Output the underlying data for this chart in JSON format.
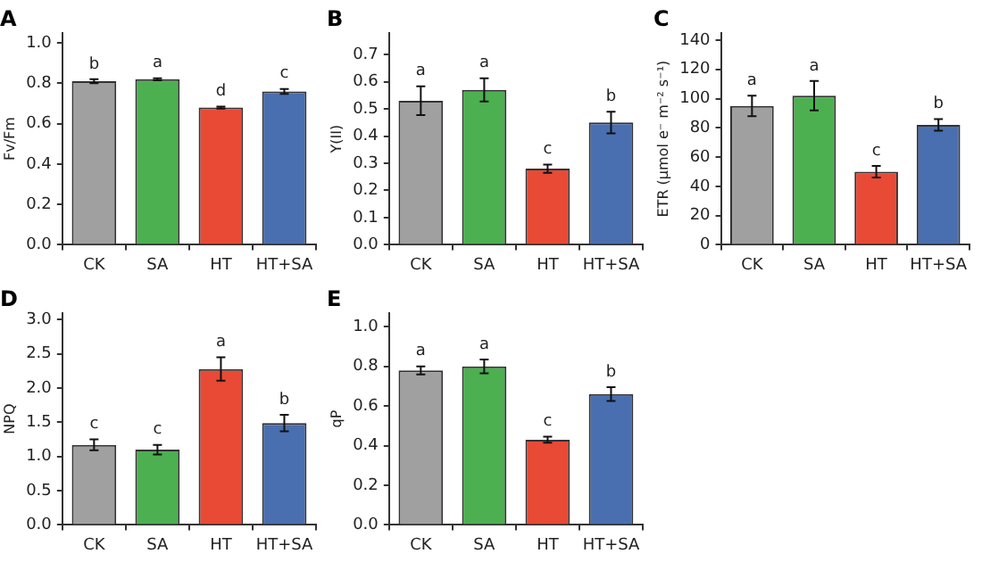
{
  "chart_data": [
    {
      "type": "bar",
      "title": "A",
      "ylabel": "Fv/Fm",
      "categories": [
        "CK",
        "SA",
        "HT",
        "HT+SA"
      ],
      "values": [
        0.81,
        0.82,
        0.68,
        0.76
      ],
      "errors": [
        0.01,
        0.005,
        0.005,
        0.012
      ],
      "colors": [
        "#a0a0a0",
        "#4cb050",
        "#e84a35",
        "#4a6fb0"
      ],
      "ylim": [
        0,
        1.05
      ],
      "yticks": [
        {
          "value": 0,
          "label": "0.0"
        },
        {
          "value": 0.2,
          "label": "0.2"
        },
        {
          "value": 0.4,
          "label": "0.4"
        },
        {
          "value": 0.6,
          "label": "0.6"
        },
        {
          "value": 0.8,
          "label": "0.8"
        },
        {
          "value": 1,
          "label": "1.0"
        }
      ],
      "annotations": [
        {
          "text": "b",
          "x": "CK",
          "y": 0.82
        },
        {
          "text": "a",
          "x": "SA",
          "y": 0.825
        },
        {
          "text": "d",
          "x": "HT",
          "y": 0.685
        },
        {
          "text": "c",
          "x": "HT+SA",
          "y": 0.772
        }
      ]
    },
    {
      "type": "bar",
      "title": "B",
      "ylabel": "Y(II)",
      "categories": [
        "CK",
        "SA",
        "HT",
        "HT+SA"
      ],
      "values": [
        0.53,
        0.57,
        0.28,
        0.45
      ],
      "errors": [
        0.053,
        0.043,
        0.015,
        0.04
      ],
      "colors": [
        "#a0a0a0",
        "#4cb050",
        "#e84a35",
        "#4a6fb0"
      ],
      "ylim": [
        0,
        0.78
      ],
      "yticks": [
        {
          "value": 0,
          "label": "0.0"
        },
        {
          "value": 0.1,
          "label": "0.1"
        },
        {
          "value": 0.2,
          "label": "0.2"
        },
        {
          "value": 0.3,
          "label": "0.3"
        },
        {
          "value": 0.4,
          "label": "0.4"
        },
        {
          "value": 0.5,
          "label": "0.5"
        },
        {
          "value": 0.6,
          "label": "0.6"
        },
        {
          "value": 0.7,
          "label": "0.7"
        }
      ],
      "annotations": [
        {
          "text": "a",
          "x": "CK",
          "y": 0.583
        },
        {
          "text": "a",
          "x": "SA",
          "y": 0.613
        },
        {
          "text": "c",
          "x": "HT",
          "y": 0.295
        },
        {
          "text": "b",
          "x": "HT+SA",
          "y": 0.49
        }
      ]
    },
    {
      "type": "bar",
      "title": "C",
      "ylabel": "ETR (μmol e⁻ m⁻² s⁻¹)",
      "categories": [
        "CK",
        "SA",
        "HT",
        "HT+SA"
      ],
      "values": [
        95,
        102,
        50,
        82
      ],
      "errors": [
        7,
        10,
        4,
        4
      ],
      "colors": [
        "#a0a0a0",
        "#4cb050",
        "#e84a35",
        "#4a6fb0"
      ],
      "ylim": [
        0,
        145
      ],
      "yticks": [
        0,
        20,
        40,
        60,
        80,
        100,
        120,
        140
      ],
      "annotations": [
        {
          "text": "a",
          "x": "CK",
          "y": 102
        },
        {
          "text": "a",
          "x": "SA",
          "y": 112
        },
        {
          "text": "c",
          "x": "HT",
          "y": 54
        },
        {
          "text": "b",
          "x": "HT+SA",
          "y": 86
        }
      ]
    },
    {
      "type": "bar",
      "title": "D",
      "ylabel": "NPQ",
      "categories": [
        "CK",
        "SA",
        "HT",
        "HT+SA"
      ],
      "values": [
        1.17,
        1.1,
        2.28,
        1.49
      ],
      "errors": [
        0.08,
        0.07,
        0.17,
        0.12
      ],
      "colors": [
        "#a0a0a0",
        "#4cb050",
        "#e84a35",
        "#4a6fb0"
      ],
      "ylim": [
        0,
        3.1
      ],
      "yticks": [
        {
          "value": 0,
          "label": "0.0"
        },
        {
          "value": 0.5,
          "label": "0.5"
        },
        {
          "value": 1,
          "label": "1.0"
        },
        {
          "value": 1.5,
          "label": "1.5"
        },
        {
          "value": 2,
          "label": "2.0"
        },
        {
          "value": 2.5,
          "label": "2.5"
        },
        {
          "value": 3,
          "label": "3.0"
        }
      ],
      "annotations": [
        {
          "text": "c",
          "x": "CK",
          "y": 1.25
        },
        {
          "text": "c",
          "x": "SA",
          "y": 1.17
        },
        {
          "text": "a",
          "x": "HT",
          "y": 2.45
        },
        {
          "text": "b",
          "x": "HT+SA",
          "y": 1.61
        }
      ]
    },
    {
      "type": "bar",
      "title": "E",
      "ylabel": "qP",
      "categories": [
        "CK",
        "SA",
        "HT",
        "HT+SA"
      ],
      "values": [
        0.78,
        0.8,
        0.43,
        0.66
      ],
      "errors": [
        0.02,
        0.035,
        0.015,
        0.035
      ],
      "colors": [
        "#a0a0a0",
        "#4cb050",
        "#e84a35",
        "#4a6fb0"
      ],
      "ylim": [
        0,
        1.07
      ],
      "yticks": [
        {
          "value": 0,
          "label": "0.0"
        },
        {
          "value": 0.2,
          "label": "0.2"
        },
        {
          "value": 0.4,
          "label": "0.4"
        },
        {
          "value": 0.6,
          "label": "0.6"
        },
        {
          "value": 0.8,
          "label": "0.8"
        },
        {
          "value": 1,
          "label": "1.0"
        }
      ],
      "annotations": [
        {
          "text": "a",
          "x": "CK",
          "y": 0.8
        },
        {
          "text": "a",
          "x": "SA",
          "y": 0.835
        },
        {
          "text": "c",
          "x": "HT",
          "y": 0.445
        },
        {
          "text": "b",
          "x": "HT+SA",
          "y": 0.695
        }
      ]
    }
  ]
}
